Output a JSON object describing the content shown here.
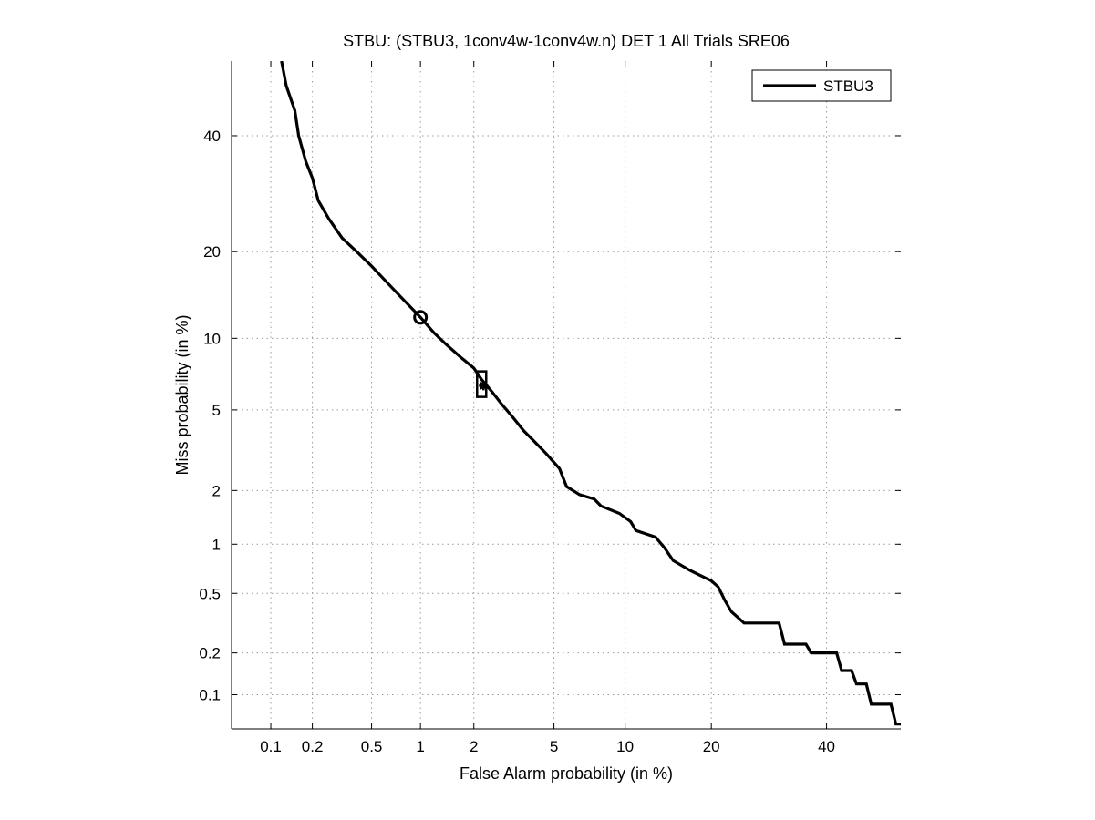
{
  "chart_data": {
    "type": "line",
    "title": "STBU: (STBU3, 1conv4w-1conv4w.n) DET 1 All Trials SRE06",
    "xlabel": "False Alarm probability (in %)",
    "ylabel": "Miss probability (in %)",
    "x_scale": "probit (normal deviate)",
    "y_scale": "probit (normal deviate)",
    "xlim": [
      0.05,
      55
    ],
    "ylim": [
      0.055,
      55
    ],
    "grid": true,
    "x_ticks": [
      {
        "value": 0.1,
        "label": "0.1"
      },
      {
        "value": 0.2,
        "label": "0.2"
      },
      {
        "value": 0.5,
        "label": "0.5"
      },
      {
        "value": 1,
        "label": "1"
      },
      {
        "value": 2,
        "label": "2"
      },
      {
        "value": 5,
        "label": "5"
      },
      {
        "value": 10,
        "label": "10"
      },
      {
        "value": 20,
        "label": "20"
      },
      {
        "value": 40,
        "label": "40"
      }
    ],
    "y_ticks": [
      {
        "value": 0.1,
        "label": "0.1"
      },
      {
        "value": 0.2,
        "label": "0.2"
      },
      {
        "value": 0.5,
        "label": "0.5"
      },
      {
        "value": 1,
        "label": "1"
      },
      {
        "value": 2,
        "label": "2"
      },
      {
        "value": 5,
        "label": "5"
      },
      {
        "value": 10,
        "label": "10"
      },
      {
        "value": 20,
        "label": "20"
      },
      {
        "value": 40,
        "label": "40"
      }
    ],
    "legend": {
      "position": "top-right",
      "entries": [
        "STBU3"
      ]
    },
    "series": [
      {
        "name": "STBU3",
        "points": [
          [
            0.12,
            55
          ],
          [
            0.13,
            50
          ],
          [
            0.15,
            45
          ],
          [
            0.16,
            40
          ],
          [
            0.18,
            35
          ],
          [
            0.2,
            32
          ],
          [
            0.22,
            28
          ],
          [
            0.26,
            25
          ],
          [
            0.32,
            22
          ],
          [
            0.4,
            20
          ],
          [
            0.5,
            18
          ],
          [
            0.62,
            16
          ],
          [
            0.78,
            14
          ],
          [
            1.0,
            12
          ],
          [
            1.2,
            10.5
          ],
          [
            1.4,
            9.5
          ],
          [
            1.7,
            8.4
          ],
          [
            2.0,
            7.6
          ],
          [
            2.2,
            6.8
          ],
          [
            2.5,
            6.0
          ],
          [
            2.8,
            5.3
          ],
          [
            3.2,
            4.6
          ],
          [
            3.6,
            4.0
          ],
          [
            4.0,
            3.6
          ],
          [
            4.6,
            3.1
          ],
          [
            5.3,
            2.6
          ],
          [
            5.7,
            2.1
          ],
          [
            6.5,
            1.9
          ],
          [
            7.5,
            1.8
          ],
          [
            8.0,
            1.65
          ],
          [
            9.5,
            1.5
          ],
          [
            10.5,
            1.35
          ],
          [
            11,
            1.2
          ],
          [
            13,
            1.1
          ],
          [
            14,
            0.95
          ],
          [
            15,
            0.8
          ],
          [
            17,
            0.7
          ],
          [
            20,
            0.6
          ],
          [
            21,
            0.55
          ],
          [
            22,
            0.45
          ],
          [
            23,
            0.38
          ],
          [
            25,
            0.32
          ],
          [
            31,
            0.32
          ],
          [
            32,
            0.23
          ],
          [
            36,
            0.23
          ],
          [
            37,
            0.2
          ],
          [
            42,
            0.2
          ],
          [
            43,
            0.15
          ],
          [
            45,
            0.15
          ],
          [
            46,
            0.12
          ],
          [
            48,
            0.12
          ],
          [
            49,
            0.085
          ],
          [
            53,
            0.085
          ],
          [
            54,
            0.06
          ],
          [
            55,
            0.06
          ]
        ]
      }
    ],
    "markers": [
      {
        "type": "circle",
        "x": 1.0,
        "y": 12
      },
      {
        "type": "square",
        "x": 2.2,
        "y": 6.5
      },
      {
        "type": "star",
        "x": 2.25,
        "y": 6.4
      }
    ]
  }
}
